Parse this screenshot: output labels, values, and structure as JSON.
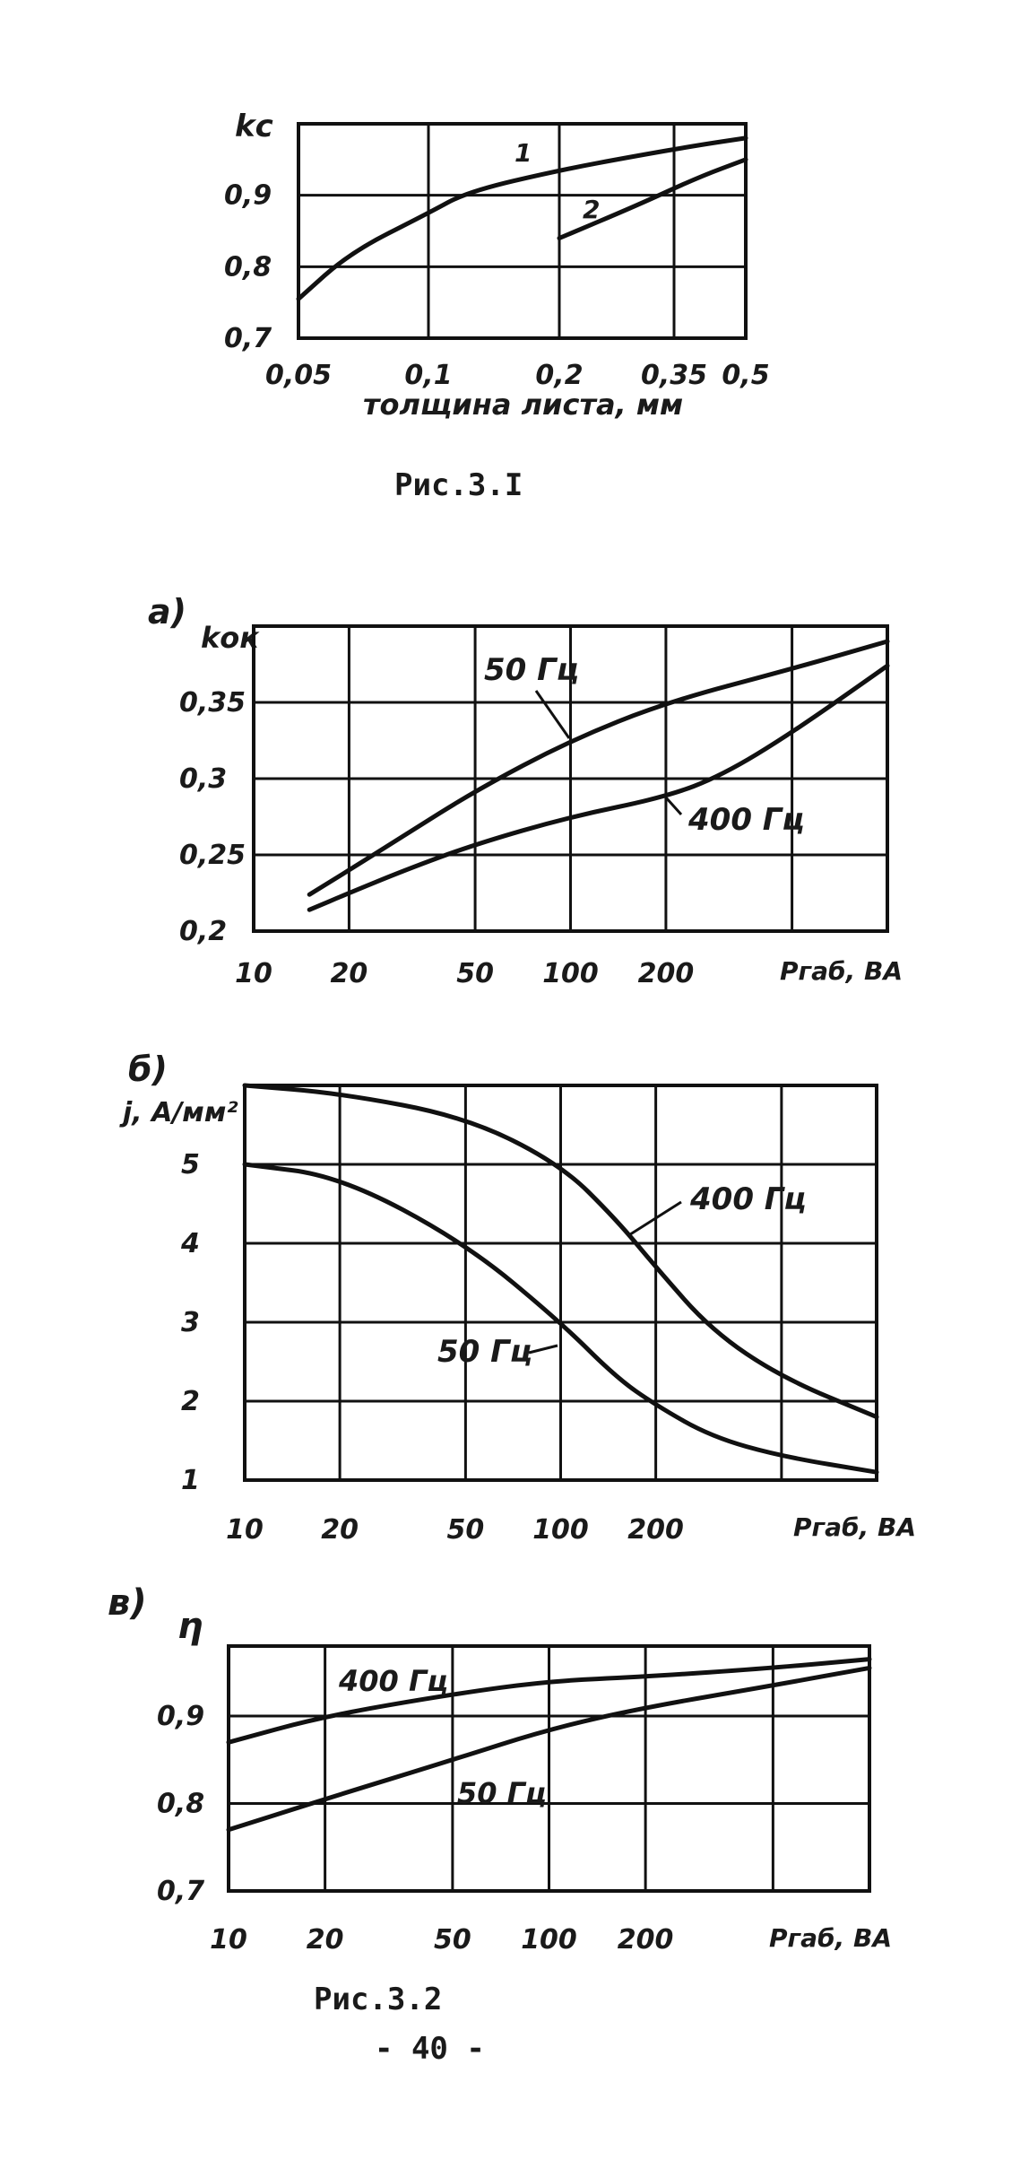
{
  "figure1": {
    "caption": "Рис.3.I",
    "ylabel": "kс",
    "xlabel": "толщина листа, мм",
    "curve_labels": [
      "1",
      "2"
    ]
  },
  "figure2": {
    "caption": "Рис.3.2",
    "page_number": "- 40 -",
    "panel_a": {
      "label": "а)",
      "ylabel": "kок",
      "xlabel": "Pгаб, ВА",
      "series_labels": [
        "50 Гц",
        "400 Гц"
      ]
    },
    "panel_b": {
      "label": "б)",
      "ylabel": "j, А/мм²",
      "xlabel": "Pгаб, ВА",
      "series_labels": [
        "400 Гц",
        "50 Гц"
      ]
    },
    "panel_c": {
      "label": "в)",
      "ylabel": "η",
      "xlabel": "Pгаб, ВА",
      "series_labels": [
        "400 Гц",
        "50 Гц"
      ]
    }
  },
  "chart_data": [
    {
      "type": "line",
      "ylabel": "kс",
      "xlabel": "толщина листа, мм",
      "x_ticks": [
        "0,05",
        "0,1",
        "0,2",
        "0,35",
        "0,5"
      ],
      "x_tick_values": [
        0.05,
        0.1,
        0.2,
        0.35,
        0.5
      ],
      "y_ticks": [
        "0,7",
        "0,8",
        "0,9"
      ],
      "y_tick_values": [
        0.7,
        0.8,
        0.9
      ],
      "ylim": [
        0.7,
        1.0
      ],
      "grid": true,
      "series": [
        {
          "name": "1",
          "x": [
            0.05,
            0.07,
            0.1,
            0.13,
            0.2,
            0.3,
            0.4,
            0.5
          ],
          "y": [
            0.755,
            0.82,
            0.875,
            0.905,
            0.935,
            0.955,
            0.97,
            0.98
          ]
        },
        {
          "name": "2",
          "x": [
            0.2,
            0.3,
            0.4,
            0.5
          ],
          "y": [
            0.84,
            0.885,
            0.925,
            0.95
          ]
        }
      ]
    },
    {
      "type": "line",
      "ylabel": "kок",
      "xlabel": "Pгаб, ВА",
      "x_scale": "log",
      "x_ticks": [
        "10",
        "20",
        "50",
        "100",
        "200"
      ],
      "x_tick_values": [
        10,
        20,
        50,
        100,
        200
      ],
      "xlim": [
        10,
        1000
      ],
      "y_ticks": [
        "0,2",
        "0,25",
        "0,3",
        "0,35"
      ],
      "y_tick_values": [
        0.2,
        0.25,
        0.3,
        0.35
      ],
      "ylim": [
        0.2,
        0.4
      ],
      "grid": true,
      "series": [
        {
          "name": "50 Гц",
          "x": [
            15,
            20,
            30,
            50,
            100,
            200,
            500,
            1000
          ],
          "y": [
            0.224,
            0.24,
            0.263,
            0.292,
            0.325,
            0.35,
            0.372,
            0.39
          ]
        },
        {
          "name": "400 Гц",
          "x": [
            15,
            20,
            30,
            50,
            100,
            200,
            300,
            500,
            1000
          ],
          "y": [
            0.214,
            0.225,
            0.24,
            0.257,
            0.275,
            0.288,
            0.302,
            0.33,
            0.374
          ]
        }
      ]
    },
    {
      "type": "line",
      "ylabel": "j, А/мм²",
      "xlabel": "Pгаб, ВА",
      "x_scale": "log",
      "x_ticks": [
        "10",
        "20",
        "50",
        "100",
        "200"
      ],
      "x_tick_values": [
        10,
        20,
        50,
        100,
        200
      ],
      "xlim": [
        10,
        1000
      ],
      "y_ticks": [
        "1",
        "2",
        "3",
        "4",
        "5"
      ],
      "y_tick_values": [
        1,
        2,
        3,
        4,
        5
      ],
      "ylim": [
        1,
        6
      ],
      "grid": true,
      "series": [
        {
          "name": "400 Гц",
          "x": [
            10,
            20,
            50,
            100,
            150,
            200,
            300,
            500,
            1000
          ],
          "y": [
            6.0,
            5.9,
            5.6,
            5.0,
            4.3,
            3.7,
            2.9,
            2.3,
            1.8
          ]
        },
        {
          "name": "50 Гц",
          "x": [
            10,
            20,
            50,
            100,
            150,
            200,
            300,
            500,
            1000
          ],
          "y": [
            5.0,
            4.85,
            4.0,
            3.0,
            2.3,
            1.95,
            1.55,
            1.3,
            1.1
          ]
        }
      ]
    },
    {
      "type": "line",
      "ylabel": "η",
      "xlabel": "Pгаб, ВА",
      "x_scale": "log",
      "x_ticks": [
        "10",
        "20",
        "50",
        "100",
        "200"
      ],
      "x_tick_values": [
        10,
        20,
        50,
        100,
        200
      ],
      "xlim": [
        10,
        1000
      ],
      "y_ticks": [
        "0,7",
        "0,8",
        "0,9"
      ],
      "y_tick_values": [
        0.7,
        0.8,
        0.9
      ],
      "ylim": [
        0.7,
        0.98
      ],
      "grid": true,
      "series": [
        {
          "name": "400 Гц",
          "x": [
            10,
            20,
            50,
            100,
            200,
            500,
            1000
          ],
          "y": [
            0.87,
            0.9,
            0.925,
            0.94,
            0.945,
            0.955,
            0.965
          ]
        },
        {
          "name": "50 Гц",
          "x": [
            10,
            20,
            50,
            100,
            200,
            500,
            1000
          ],
          "y": [
            0.77,
            0.805,
            0.85,
            0.885,
            0.91,
            0.935,
            0.955
          ]
        }
      ]
    }
  ]
}
